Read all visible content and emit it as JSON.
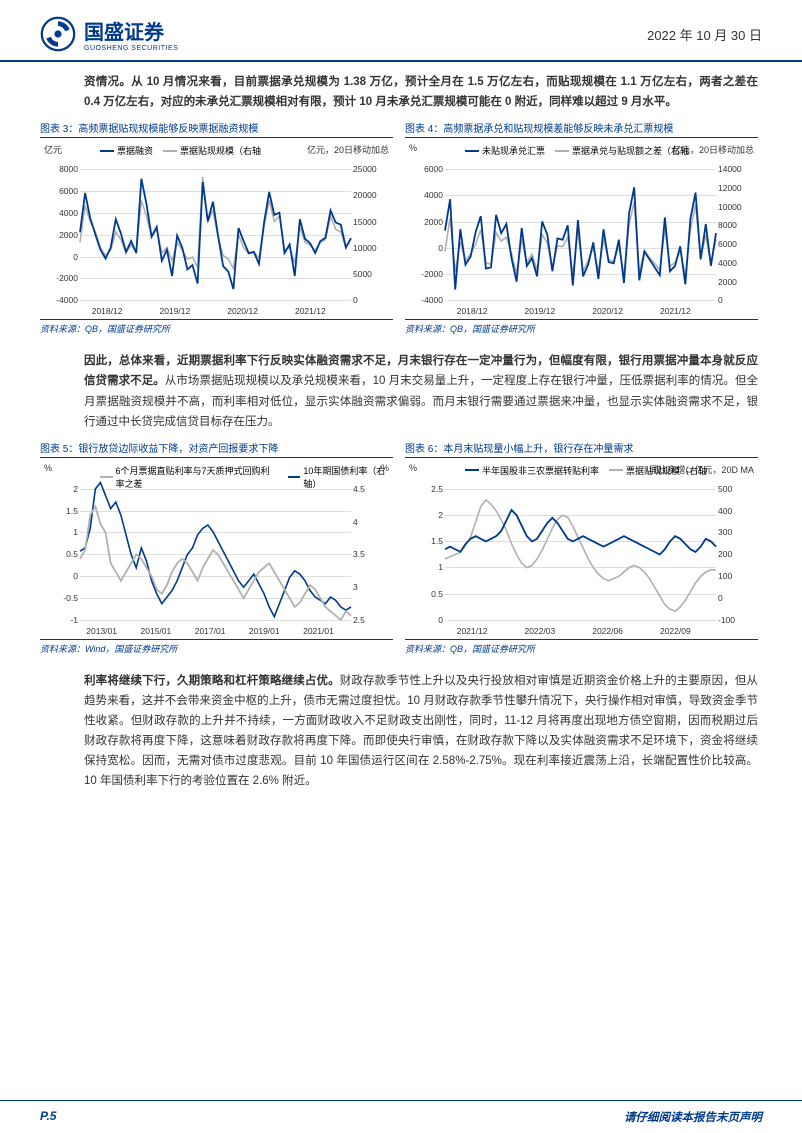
{
  "header": {
    "company": "国盛证券",
    "company_sub": "GUOSHENG SECURITIES",
    "date": "2022 年 10 月 30 日"
  },
  "para1": "资情况。从 10 月情况来看，目前票据承兑规模为 1.38 万亿，预计全月在 1.5 万亿左右，而贴现规模在 1.1 万亿左右，两者之差在 0.4 万亿左右，对应的未承兑汇票规模相对有限，预计 10 月未承兑汇票规模可能在 0 附近，同样难以超过 9 月水平。",
  "para2_bold": "因此，总体来看，近期票据利率下行反映实体融资需求不足，月末银行存在一定冲量行为，但幅度有限，银行用票据冲量本身就反应信贷需求不足。",
  "para2_rest": "从市场票据贴现规模以及承兑规模来看，10 月末交易量上升，一定程度上存在银行冲量，压低票据利率的情况。但全月票据融资规模并不高，而利率相对低位，显示实体融资需求偏弱。而月末银行需要通过票据来冲量，也显示实体融资需求不足，银行通过中长贷完成信贷目标存在压力。",
  "para3_bold": "利率将继续下行，久期策略和杠杆策略继续占优。",
  "para3_rest": "财政存款季节性上升以及央行投放相对审慎是近期资金价格上升的主要原因，但从趋势来看，这并不会带来资金中枢的上升，债市无需过度担忧。10 月财政存款季节性攀升情况下，央行操作相对审慎，导致资金季节性收紧。但财政存款的上升并不持续，一方面财政收入不足财政支出刚性，同时，11-12 月将再度出现地方债空窗期，因而税期过后财政存款将再度下降，这意味着财政存款将再度下降。而即使央行审慎，在财政存款下降以及实体融资需求不足环境下，资金将继续保持宽松。因而，无需对债市过度悲观。目前 10 年国债运行区间在 2.58%-2.75%。现在利率接近震荡上沿，长端配置性价比较高。10 年国债利率下行的考验位置在 2.6% 附近。",
  "chart3": {
    "title": "图表 3：高频票据贴现规模能够反映票据融资规模",
    "yl_unit": "亿元",
    "yr_unit": "亿元，20日移动加总",
    "legend1": "票据融资",
    "legend2": "票据贴现规模（右轴",
    "color1": "#003a8c",
    "color2": "#b0b0b0",
    "yl_ticks": [
      "-4000",
      "-2000",
      "0",
      "2000",
      "4000",
      "6000",
      "8000"
    ],
    "yr_ticks": [
      "0",
      "5000",
      "10000",
      "15000",
      "20000",
      "25000"
    ],
    "x_ticks": [
      "2018/12",
      "2019/12",
      "2020/12",
      "2021/12"
    ],
    "series1": [
      2200,
      5800,
      3500,
      2000,
      600,
      -200,
      800,
      3400,
      2100,
      400,
      1400,
      300,
      7100,
      4800,
      1800,
      2700,
      -400,
      600,
      -1800,
      1900,
      800,
      -1200,
      -800,
      -2500,
      6800,
      3200,
      5000,
      1900,
      -900,
      -1400,
      -3000,
      2600,
      1400,
      300,
      400,
      -700,
      3100,
      5900,
      3800,
      4000,
      300,
      1100,
      -1800,
      3400,
      1600,
      1200,
      300,
      1400,
      1700,
      4200,
      3100,
      2900,
      800,
      1650
    ],
    "series2": [
      11000,
      18000,
      15000,
      13000,
      10000,
      8500,
      9500,
      13000,
      11500,
      9000,
      10500,
      9200,
      19000,
      16000,
      12000,
      13500,
      9000,
      10000,
      7500,
      11000,
      9500,
      7800,
      8200,
      6200,
      23500,
      15000,
      17000,
      12000,
      8500,
      7800,
      6000,
      12500,
      10000,
      8800,
      9200,
      8000,
      14000,
      19000,
      15000,
      16000,
      9500,
      10000,
      7000,
      14000,
      11000,
      10500,
      9500,
      11000,
      11500,
      16000,
      13500,
      13000,
      10000,
      11800
    ],
    "source": "资料来源：QB，国盛证券研究所"
  },
  "chart4": {
    "title": "图表 4：高频票据承兑和贴现规模差能够反映未承兑汇票规模",
    "yl_unit": "%",
    "yr_unit": "亿元，20日移动加总",
    "legend1": "未贴现承兑汇票",
    "legend2": "票据承兑与贴现额之差（右轴",
    "color1": "#003a8c",
    "color2": "#b0b0b0",
    "yl_ticks": [
      "-4000",
      "-2000",
      "0",
      "2000",
      "4000",
      "6000"
    ],
    "yr_ticks": [
      "0",
      "2000",
      "4000",
      "6000",
      "8000",
      "10000",
      "12000",
      "14000"
    ],
    "x_ticks": [
      "2018/12",
      "2019/12",
      "2020/12",
      "2021/12"
    ],
    "series1": [
      1300,
      3700,
      -3200,
      1400,
      -1300,
      -700,
      1200,
      2400,
      -1600,
      -1500,
      2500,
      1100,
      1800,
      -800,
      -2600,
      1500,
      -1400,
      -800,
      -2200,
      2000,
      1000,
      -1800,
      700,
      600,
      1700,
      -2900,
      2100,
      -2200,
      -1300,
      400,
      -2400,
      1400,
      -1100,
      -1200,
      600,
      -2700,
      2600,
      4600,
      -2500,
      -300,
      -900,
      -1500,
      -2100,
      2300,
      -1800,
      -1400,
      100,
      -2800,
      2200,
      4200,
      -900,
      1800,
      -1400,
      1100
    ],
    "series2": [
      5200,
      8800,
      3000,
      6200,
      4200,
      4900,
      6000,
      7500,
      4000,
      3800,
      7200,
      6300,
      6700,
      5000,
      2800,
      6500,
      4000,
      4900,
      3200,
      7000,
      6100,
      3500,
      5800,
      5700,
      6700,
      2700,
      7300,
      3100,
      4200,
      5600,
      3000,
      6500,
      4300,
      4100,
      5800,
      2700,
      8000,
      10500,
      2900,
      5300,
      4500,
      3900,
      3200,
      7600,
      3600,
      4000,
      5300,
      2600,
      7500,
      10200,
      4500,
      6900,
      3900,
      6500
    ],
    "source": "资料来源：QB，国盛证券研究所"
  },
  "chart5": {
    "title": "图表 5：银行放贷边际收益下降，对资产回报要求下降",
    "yl_unit": "%",
    "yr_unit": "%",
    "legend1": "6个月票据直贴利率与7天质押式回购利率之差",
    "legend2": "10年期国债利率（右轴）",
    "color1": "#b0b0b0",
    "color2": "#003a8c",
    "yl_ticks": [
      "-1",
      "-0.5",
      "0",
      "0.5",
      "1",
      "1.5",
      "2"
    ],
    "yr_ticks": [
      "2.5",
      "3",
      "3.5",
      "4",
      "4.5"
    ],
    "x_ticks": [
      "2013/01",
      "2015/01",
      "2017/01",
      "2019/01",
      "2021/01"
    ],
    "series1": [
      0.4,
      0.6,
      1.4,
      1.6,
      1.2,
      1.0,
      0.3,
      0.1,
      -0.1,
      0.1,
      0.3,
      0.5,
      0.4,
      0.2,
      0.0,
      -0.3,
      -0.4,
      -0.2,
      0.1,
      0.3,
      0.4,
      0.3,
      0.1,
      -0.1,
      0.2,
      0.4,
      0.6,
      0.5,
      0.3,
      0.1,
      -0.1,
      -0.3,
      -0.5,
      -0.3,
      -0.1,
      0.1,
      0.2,
      0.3,
      0.1,
      -0.1,
      -0.3,
      -0.5,
      -0.7,
      -0.6,
      -0.4,
      -0.2,
      -0.3,
      -0.5,
      -0.7,
      -0.8,
      -0.9,
      -1.0,
      -0.8,
      -0.9
    ],
    "series2": [
      3.55,
      3.6,
      3.9,
      4.5,
      4.6,
      4.4,
      4.2,
      4.3,
      4.1,
      3.8,
      3.5,
      3.3,
      3.6,
      3.4,
      3.1,
      2.9,
      2.75,
      2.85,
      2.95,
      3.1,
      3.3,
      3.5,
      3.6,
      3.8,
      3.9,
      3.95,
      3.85,
      3.7,
      3.55,
      3.4,
      3.25,
      3.1,
      3.0,
      3.1,
      3.2,
      3.05,
      2.9,
      2.7,
      2.55,
      2.75,
      2.95,
      3.15,
      3.25,
      3.2,
      3.1,
      2.95,
      2.85,
      2.8,
      2.75,
      2.85,
      2.8,
      2.7,
      2.65,
      2.7
    ],
    "source": "资料来源：Wind，国盛证券研究所"
  },
  "chart6": {
    "title": "图表 6：本月末贴现量小幅上升，银行存在冲量需求",
    "yl_unit": "%",
    "yr_unit": "同比多增，亿元，20D MA",
    "legend1": "半年国股非三农票据转贴利率",
    "legend2": "票据贴现规模（右轴",
    "color1": "#003a8c",
    "color2": "#b0b0b0",
    "yl_ticks": [
      "0",
      "0.5",
      "1",
      "1.5",
      "2",
      "2.5"
    ],
    "yr_ticks": [
      "-100",
      "0",
      "100",
      "200",
      "300",
      "400",
      "500"
    ],
    "x_ticks": [
      "2021/12",
      "2022/03",
      "2022/06",
      "2022/09"
    ],
    "series1": [
      1.35,
      1.4,
      1.35,
      1.3,
      1.45,
      1.55,
      1.6,
      1.55,
      1.5,
      1.55,
      1.6,
      1.7,
      1.9,
      2.1,
      2.0,
      1.8,
      1.6,
      1.5,
      1.55,
      1.7,
      1.85,
      1.95,
      1.85,
      1.7,
      1.55,
      1.5,
      1.55,
      1.6,
      1.55,
      1.5,
      1.45,
      1.4,
      1.45,
      1.5,
      1.55,
      1.6,
      1.55,
      1.5,
      1.45,
      1.4,
      1.35,
      1.3,
      1.25,
      1.35,
      1.5,
      1.6,
      1.55,
      1.45,
      1.35,
      1.3,
      1.4,
      1.55,
      1.5,
      1.4
    ],
    "series2": [
      180,
      190,
      200,
      210,
      240,
      280,
      350,
      420,
      450,
      430,
      400,
      360,
      310,
      250,
      200,
      160,
      140,
      150,
      180,
      220,
      270,
      320,
      360,
      380,
      370,
      330,
      280,
      230,
      180,
      140,
      110,
      90,
      80,
      90,
      100,
      120,
      140,
      150,
      140,
      120,
      90,
      50,
      10,
      -30,
      -50,
      -60,
      -40,
      -10,
      30,
      70,
      100,
      120,
      130,
      130
    ],
    "source": "资料来源：QB，国盛证券研究所"
  },
  "footer": {
    "page": "P.5",
    "text": "请仔细阅读本报告末页声明"
  }
}
